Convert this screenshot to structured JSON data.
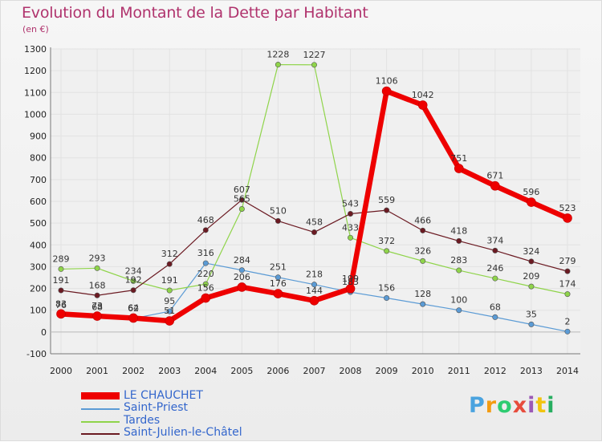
{
  "chart_data": {
    "type": "line",
    "title": "Evolution du Montant de la Dette par Habitant",
    "unit_label": "(en €)",
    "xlabel": "",
    "ylabel": "",
    "ylim": [
      -100,
      1300
    ],
    "yticks": [
      -100,
      0,
      100,
      200,
      300,
      400,
      500,
      600,
      700,
      800,
      900,
      1000,
      1100,
      1200,
      1300
    ],
    "x": [
      "2000",
      "2001",
      "2002",
      "2003",
      "2004",
      "2005",
      "2006",
      "2007",
      "2008",
      "2009",
      "2010",
      "2011",
      "2012",
      "2013",
      "2014"
    ],
    "series": [
      {
        "name": "Saint-Priest",
        "color": "#5b9bd5",
        "width": 1.2,
        "marker": 3.2,
        "values": [
          76,
          68,
          62,
          95,
          316,
          284,
          251,
          218,
          183,
          156,
          128,
          100,
          68,
          35,
          2
        ]
      },
      {
        "name": "Tardes",
        "color": "#8fd44a",
        "width": 1.2,
        "marker": 3.2,
        "values": [
          289,
          293,
          234,
          191,
          220,
          565,
          1228,
          1227,
          433,
          372,
          326,
          283,
          246,
          209,
          174
        ]
      },
      {
        "name": "Saint-Julien-le-Châtel",
        "color": "#6b1a22",
        "width": 1.2,
        "marker": 3.2,
        "values": [
          191,
          168,
          192,
          312,
          468,
          607,
          510,
          458,
          543,
          559,
          466,
          418,
          374,
          324,
          279
        ]
      },
      {
        "name": "LE CHAUCHET",
        "color": "#ee0000",
        "width": 6.5,
        "marker": 5.5,
        "values": [
          83,
          73,
          64,
          51,
          156,
          206,
          176,
          144,
          199,
          1106,
          1042,
          751,
          671,
          596,
          523
        ]
      }
    ],
    "legend_order": [
      "LE CHAUCHET",
      "Saint-Priest",
      "Tardes",
      "Saint-Julien-le-Châtel"
    ],
    "label_text": {
      "LE CHAUCHET": [
        "83",
        "73",
        "64",
        "51",
        "156",
        "206",
        "176",
        "144",
        "199",
        "1106",
        "1042",
        "751",
        "671",
        "596",
        "523"
      ],
      "Saint-Priest": [
        "76",
        "68",
        "62",
        "95",
        "316",
        "284",
        "251",
        "218",
        "183",
        "156",
        "128",
        "100",
        "68",
        "35",
        "2"
      ],
      "Tardes": [
        "289",
        "293",
        "234",
        "191",
        "220",
        "565",
        "1228",
        "1227",
        "433",
        "372",
        "326",
        "283",
        "246",
        "209",
        "174"
      ],
      "Saint-Julien-le-Châtel": [
        "191",
        "168",
        "192",
        "312",
        "468",
        "607",
        "510",
        "458",
        "543",
        "559",
        "466",
        "418",
        "374",
        "324",
        "279"
      ]
    }
  },
  "logo": {
    "text": "Proxiti",
    "letters": [
      "P",
      "r",
      "o",
      "x",
      "i",
      "t",
      "i"
    ],
    "colors": [
      "#4aa3df",
      "#f39c12",
      "#2ecc71",
      "#e74c3c",
      "#9b59b6",
      "#f1c40f",
      "#27ae60"
    ]
  }
}
